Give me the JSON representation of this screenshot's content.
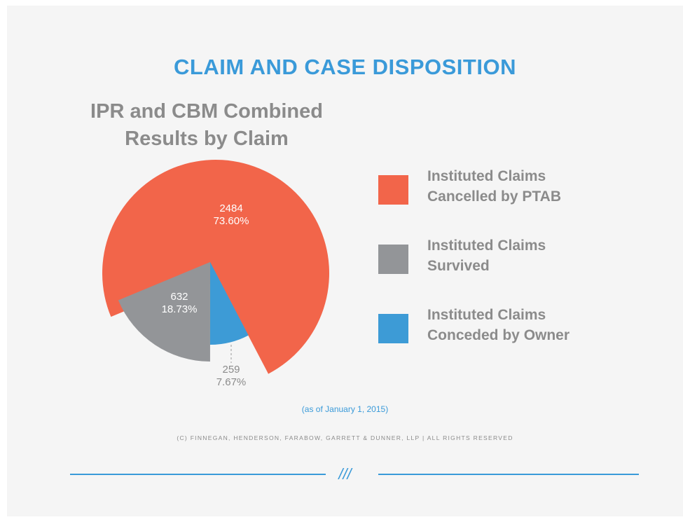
{
  "chart_data": {
    "type": "pie",
    "title": "CLAIM AND CASE DISPOSITION",
    "subtitle": "IPR and CBM Combined\nResults by Claim",
    "categories": [
      "Instituted Claims\nCancelled by PTAB",
      "Instituted Claims\nSurvived",
      "Instituted Claims\nConceded by Owner"
    ],
    "values": [
      2484,
      632,
      259
    ],
    "percentages": [
      {
        "value": 73.6,
        "label": "73.60%"
      },
      {
        "value": 18.73,
        "label": "18.73%"
      },
      {
        "value": 7.67,
        "label": "7.67%"
      }
    ],
    "colors": [
      "#f2654a",
      "#939598",
      "#3d9bd6"
    ],
    "note": "(as of January 1, 2015)",
    "copyright": "(C) FINNEGAN, HENDERSON, FARABOW, GARRETT & DUNNER, LLP | ALL RIGHTS RESERVED",
    "divider": "///"
  }
}
